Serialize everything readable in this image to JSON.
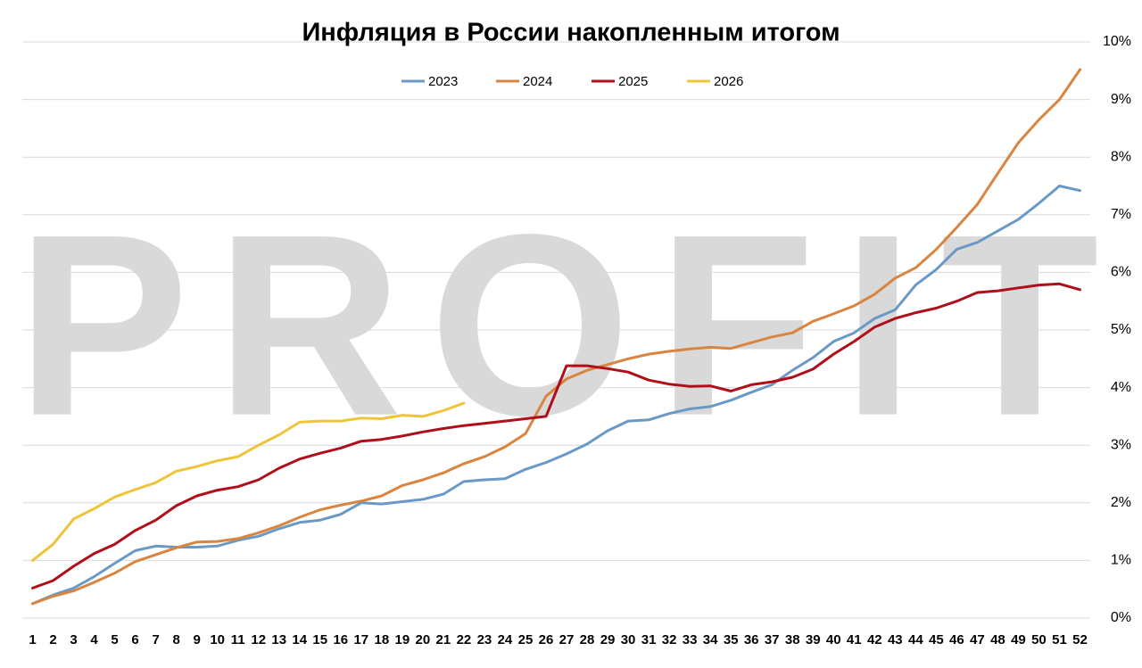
{
  "chart_data": {
    "type": "line",
    "title": "Инфляция в России накопленным итогом",
    "watermark": "PROFIT",
    "x": [
      1,
      2,
      3,
      4,
      5,
      6,
      7,
      8,
      9,
      10,
      11,
      12,
      13,
      14,
      15,
      16,
      17,
      18,
      19,
      20,
      21,
      22,
      23,
      24,
      25,
      26,
      27,
      28,
      29,
      30,
      31,
      32,
      33,
      34,
      35,
      36,
      37,
      38,
      39,
      40,
      41,
      42,
      43,
      44,
      45,
      46,
      47,
      48,
      49,
      50,
      51,
      52
    ],
    "xlim": [
      0.5,
      52.5
    ],
    "ylim": [
      0,
      10
    ],
    "yticks": [
      {
        "value": 0,
        "label": "0%"
      },
      {
        "value": 1,
        "label": "1%"
      },
      {
        "value": 2,
        "label": "2%"
      },
      {
        "value": 3,
        "label": "3%"
      },
      {
        "value": 4,
        "label": "4%"
      },
      {
        "value": 5,
        "label": "5%"
      },
      {
        "value": 6,
        "label": "6%"
      },
      {
        "value": 7,
        "label": "7%"
      },
      {
        "value": 8,
        "label": "8%"
      },
      {
        "value": 9,
        "label": "9%"
      },
      {
        "value": 10,
        "label": "10%"
      }
    ],
    "grid": true,
    "series": [
      {
        "name": "2023",
        "color": "#6a99c6",
        "values": [
          0.25,
          0.4,
          0.52,
          0.72,
          0.95,
          1.17,
          1.25,
          1.23,
          1.23,
          1.25,
          1.35,
          1.42,
          1.55,
          1.66,
          1.7,
          1.8,
          2.0,
          1.98,
          2.02,
          2.06,
          2.15,
          2.37,
          2.4,
          2.42,
          2.58,
          2.7,
          2.85,
          3.02,
          3.25,
          3.42,
          3.44,
          3.55,
          3.63,
          3.67,
          3.78,
          3.92,
          4.05,
          4.3,
          4.52,
          4.8,
          4.95,
          5.2,
          5.35,
          5.78,
          6.05,
          6.4,
          6.52,
          6.72,
          6.92,
          7.2,
          7.5,
          7.42
        ]
      },
      {
        "name": "2024",
        "color": "#d9843f",
        "values": [
          0.25,
          0.38,
          0.47,
          0.62,
          0.78,
          0.98,
          1.1,
          1.22,
          1.32,
          1.33,
          1.38,
          1.48,
          1.6,
          1.75,
          1.88,
          1.96,
          2.03,
          2.12,
          2.3,
          2.4,
          2.52,
          2.68,
          2.8,
          2.97,
          3.2,
          3.85,
          4.15,
          4.3,
          4.4,
          4.5,
          4.58,
          4.63,
          4.67,
          4.7,
          4.68,
          4.78,
          4.88,
          4.95,
          5.15,
          5.28,
          5.42,
          5.62,
          5.9,
          6.08,
          6.4,
          6.78,
          7.18,
          7.72,
          8.25,
          8.65,
          9.0,
          9.52
        ]
      },
      {
        "name": "2025",
        "color": "#b00f1a",
        "values": [
          0.52,
          0.65,
          0.9,
          1.12,
          1.28,
          1.52,
          1.7,
          1.95,
          2.12,
          2.22,
          2.28,
          2.4,
          2.6,
          2.76,
          2.86,
          2.95,
          3.07,
          3.1,
          3.16,
          3.23,
          3.29,
          3.34,
          3.38,
          3.42,
          3.46,
          3.5,
          4.38,
          4.38,
          4.33,
          4.27,
          4.13,
          4.06,
          4.02,
          4.03,
          3.94,
          4.05,
          4.1,
          4.18,
          4.32,
          4.58,
          4.8,
          5.05,
          5.2,
          5.3,
          5.38,
          5.5,
          5.65,
          5.68,
          5.73,
          5.78,
          5.8,
          5.7
        ]
      },
      {
        "name": "2026",
        "color": "#f0c43a",
        "values": [
          1.0,
          1.28,
          1.72,
          1.9,
          2.1,
          2.23,
          2.35,
          2.55,
          2.63,
          2.73,
          2.8,
          3.0,
          3.18,
          3.4,
          3.42,
          3.42,
          3.47,
          3.46,
          3.52,
          3.5,
          3.6,
          3.73,
          null,
          null,
          null,
          null,
          null,
          null,
          null,
          null,
          null,
          null,
          null,
          null,
          null,
          null,
          null,
          null,
          null,
          null,
          null,
          null,
          null,
          null,
          null,
          null,
          null,
          null,
          null,
          null,
          null,
          null
        ]
      }
    ]
  }
}
